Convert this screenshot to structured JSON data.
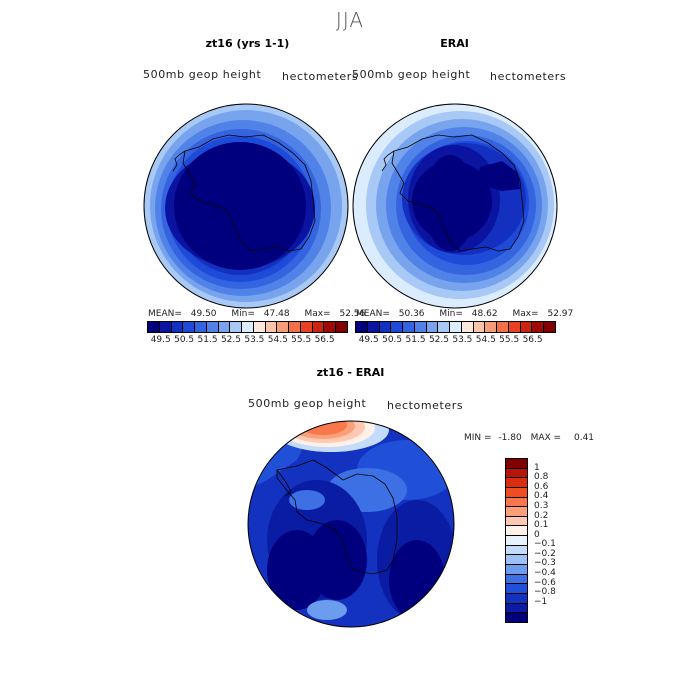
{
  "figure": {
    "title": "JJA",
    "top_left": {
      "title": "zt16 (yrs 1-1)",
      "subtitle": "500mb geop height",
      "units": "hectometers",
      "mean_label": "MEAN=",
      "mean": "49.50",
      "min_label": "Min=",
      "min": "47.48",
      "max_label": "Max=",
      "max": "52.56"
    },
    "top_right": {
      "title": "ERAI",
      "subtitle": "500mb geop height",
      "units": "hectometers",
      "mean_label": "MEAN=",
      "mean": "50.36",
      "min_label": "Min=",
      "min": "48.62",
      "max_label": "Max=",
      "max": "52.97"
    },
    "bottom": {
      "title": "zt16 - ERAI",
      "subtitle": "500mb geop height",
      "units": "hectometers",
      "min_label": "MIN =",
      "min": "-1.80",
      "max_label": "MAX =",
      "max": "0.41"
    },
    "colorbar_top": {
      "colors": [
        "#00007f",
        "#0a14a0",
        "#1430c0",
        "#1e4ad8",
        "#3464e0",
        "#5082e8",
        "#78a4ee",
        "#a8c8f6",
        "#dcecff",
        "#ffe8dc",
        "#fcc4a8",
        "#f89c78",
        "#f47048",
        "#e84020",
        "#cc2410",
        "#a00a06",
        "#7f0000"
      ],
      "labels": [
        "49.5",
        "50.5",
        "51.5",
        "52.5",
        "53.5",
        "54.5",
        "55.5",
        "56.5"
      ]
    },
    "colorbar_diff": {
      "colors": [
        "#7f0000",
        "#b81408",
        "#dc2c10",
        "#f04c20",
        "#f8784c",
        "#fca07c",
        "#ffc8b0",
        "#fff0e8",
        "#e8f2ff",
        "#c4dcfc",
        "#9cc0f6",
        "#6c9cee",
        "#3c70e4",
        "#2050d8",
        "#1432c0",
        "#0a1ca4",
        "#00007f"
      ],
      "labels": [
        "1",
        "0.8",
        "0.6",
        "0.4",
        "0.3",
        "0.2",
        "0.1",
        "0",
        "−0.1",
        "−0.2",
        "−0.3",
        "−0.4",
        "−0.6",
        "−0.8",
        "−1"
      ]
    }
  }
}
